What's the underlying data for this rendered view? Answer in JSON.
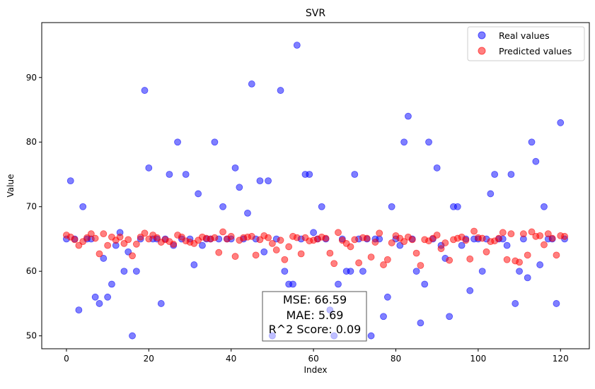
{
  "chart_data": {
    "type": "scatter",
    "title": "SVR",
    "xlabel": "Index",
    "ylabel": "Value",
    "xlim": [
      -6,
      127
    ],
    "ylim": [
      48,
      98.5
    ],
    "x_ticks": [
      0,
      20,
      40,
      60,
      80,
      100,
      120
    ],
    "y_ticks": [
      50,
      60,
      70,
      80,
      90
    ],
    "grid": false,
    "legend_position": "top-right",
    "series": [
      {
        "name": "Real values",
        "color": "#0000ff",
        "values": [
          65,
          74,
          65,
          54,
          70,
          65,
          65,
          56,
          55,
          62,
          56,
          58,
          64,
          66,
          60,
          63,
          50,
          60,
          65,
          88,
          76,
          65,
          65,
          55,
          65,
          75,
          64,
          80,
          65,
          75,
          65,
          61,
          72,
          64,
          65,
          65,
          80,
          65,
          70,
          65,
          65,
          76,
          73,
          65,
          69,
          89,
          65,
          74,
          63,
          74,
          50,
          65,
          88,
          60,
          58,
          58,
          95,
          65,
          75,
          75,
          66,
          65,
          70,
          65,
          54,
          50,
          58,
          65,
          60,
          60,
          75,
          65,
          60,
          65,
          50,
          65,
          65,
          53,
          56,
          70,
          65,
          64,
          80,
          84,
          65,
          60,
          52,
          58,
          80,
          65,
          76,
          64,
          62,
          53,
          70,
          70,
          64,
          65,
          57,
          65,
          65,
          60,
          65,
          72,
          75,
          65,
          65,
          64,
          75,
          55,
          60,
          65,
          59,
          80,
          77,
          61,
          70,
          65,
          65,
          55,
          83,
          65
        ]
      },
      {
        "name": "Predicted values",
        "color": "#ff0000",
        "values": [
          65.6,
          65.3,
          64.9,
          64.0,
          64.6,
          65.2,
          65.8,
          65.1,
          62.7,
          65.8,
          64.0,
          65.3,
          64.8,
          65.3,
          64.3,
          64.9,
          62.4,
          64.2,
          65.3,
          65.9,
          65.0,
          65.6,
          65.2,
          64.5,
          64.9,
          64.6,
          64.2,
          65.6,
          65.3,
          64.7,
          64.5,
          64.3,
          64.8,
          65.3,
          65.1,
          65.0,
          65.2,
          62.9,
          66.1,
          65.0,
          65.4,
          62.3,
          64.8,
          65.2,
          65.3,
          65.4,
          62.5,
          64.9,
          65.5,
          65.2,
          64.3,
          63.3,
          64.8,
          61.8,
          63.8,
          65.4,
          65.2,
          62.7,
          65.2,
          64.7,
          64.8,
          65.0,
          65.3,
          65.1,
          62.8,
          61.2,
          66.0,
          64.8,
          64.3,
          63.8,
          64.9,
          61.3,
          65.2,
          65.1,
          62.2,
          64.5,
          65.9,
          61.0,
          61.8,
          64.4,
          65.5,
          65.1,
          64.6,
          65.3,
          64.9,
          62.8,
          60.9,
          64.9,
          64.7,
          65.1,
          65.6,
          63.5,
          64.4,
          61.7,
          64.9,
          65.1,
          65.3,
          64.8,
          61.9,
          66.2,
          65.2,
          65.1,
          63.0,
          64.6,
          64.7,
          65.1,
          66.0,
          61.8,
          65.8,
          61.6,
          61.4,
          65.8,
          62.5,
          66.1,
          65.4,
          65.5,
          64.1,
          65.8,
          65.1,
          62.5,
          65.5,
          65.4
        ]
      }
    ],
    "annotation": {
      "lines": [
        "MSE: 66.59",
        "MAE: 5.69",
        "R^2 Score: 0.09"
      ]
    }
  }
}
